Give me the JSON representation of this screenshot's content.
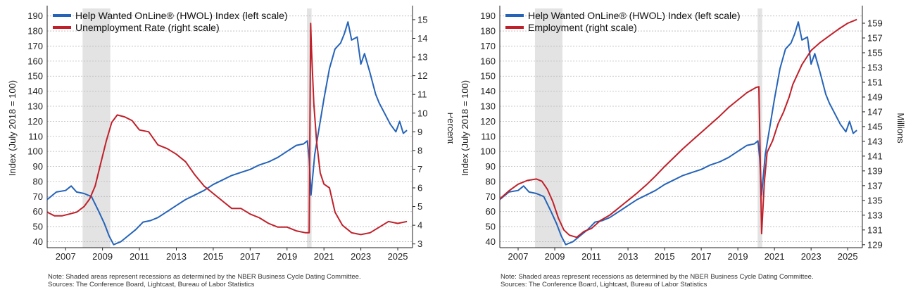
{
  "chart_data": [
    {
      "type": "line",
      "title": "",
      "ylabel_left": "Index (July 2018 = 100)",
      "ylabel_right": "Percent",
      "xlim": [
        2006.0,
        2025.8
      ],
      "ylim_left": [
        36,
        195
      ],
      "ylim_right": [
        2.8,
        15.6
      ],
      "x_ticks": [
        2007,
        2009,
        2011,
        2013,
        2015,
        2017,
        2019,
        2021,
        2023,
        2025
      ],
      "y_left_ticks": [
        40,
        50,
        60,
        70,
        80,
        90,
        100,
        110,
        120,
        130,
        140,
        150,
        160,
        170,
        180,
        190
      ],
      "y_right_ticks": [
        3,
        4,
        5,
        6,
        7,
        8,
        9,
        10,
        11,
        12,
        13,
        14,
        15
      ],
      "grid": true,
      "legend_position": "top-left",
      "recessions": [
        [
          2007.92,
          2009.42
        ],
        [
          2020.08,
          2020.33
        ]
      ],
      "note": "Note: Shaded areas represent recessions as determined by the NBER Business Cycle Dating Committee.",
      "sources": "Sources: The Conference Board, Lightcast, Bureau of Labor Statistics",
      "series": [
        {
          "name": "Help Wanted OnLine® (HWOL) Index (left scale)",
          "axis": "left",
          "color": "#2563b8",
          "x": [
            2006.0,
            2006.5,
            2007.0,
            2007.3,
            2007.6,
            2008.0,
            2008.4,
            2008.8,
            2009.1,
            2009.35,
            2009.6,
            2010.0,
            2010.4,
            2010.8,
            2011.2,
            2011.6,
            2012.0,
            2012.5,
            2013.0,
            2013.5,
            2014.0,
            2014.5,
            2015.0,
            2015.5,
            2016.0,
            2016.5,
            2017.0,
            2017.5,
            2018.0,
            2018.5,
            2019.0,
            2019.5,
            2019.9,
            2020.1,
            2020.2,
            2020.3,
            2020.5,
            2020.8,
            2021.0,
            2021.3,
            2021.6,
            2021.9,
            2022.1,
            2022.3,
            2022.5,
            2022.8,
            2023.0,
            2023.2,
            2023.5,
            2023.8,
            2024.0,
            2024.3,
            2024.6,
            2024.9,
            2025.1,
            2025.3,
            2025.5
          ],
          "values": [
            68,
            73,
            74,
            77,
            73,
            72,
            70,
            60,
            52,
            44,
            38,
            40,
            44,
            48,
            53,
            54,
            56,
            60,
            64,
            68,
            71,
            74,
            78,
            81,
            84,
            86,
            88,
            91,
            93,
            96,
            100,
            104,
            105,
            107,
            95,
            71,
            98,
            120,
            135,
            155,
            168,
            172,
            178,
            186,
            174,
            176,
            158,
            165,
            152,
            138,
            132,
            125,
            118,
            113,
            120,
            112,
            114
          ]
        },
        {
          "name": "Unemployment Rate (right scale)",
          "axis": "right",
          "color": "#c0202a",
          "x": [
            2006.0,
            2006.4,
            2006.8,
            2007.2,
            2007.6,
            2008.0,
            2008.3,
            2008.6,
            2008.9,
            2009.2,
            2009.5,
            2009.8,
            2010.2,
            2010.6,
            2011.0,
            2011.5,
            2012.0,
            2012.5,
            2013.0,
            2013.5,
            2014.0,
            2014.5,
            2015.0,
            2015.5,
            2016.0,
            2016.5,
            2017.0,
            2017.5,
            2018.0,
            2018.5,
            2019.0,
            2019.5,
            2020.0,
            2020.2,
            2020.28,
            2020.32,
            2020.45,
            2020.6,
            2020.8,
            2021.0,
            2021.3,
            2021.6,
            2022.0,
            2022.5,
            2023.0,
            2023.5,
            2024.0,
            2024.5,
            2025.0,
            2025.5
          ],
          "values": [
            4.7,
            4.5,
            4.5,
            4.6,
            4.7,
            5.0,
            5.4,
            6.1,
            7.3,
            8.5,
            9.5,
            9.9,
            9.8,
            9.6,
            9.1,
            9.0,
            8.3,
            8.1,
            7.8,
            7.4,
            6.7,
            6.1,
            5.7,
            5.3,
            4.9,
            4.9,
            4.6,
            4.4,
            4.1,
            3.9,
            3.9,
            3.7,
            3.6,
            3.6,
            14.8,
            13.5,
            10.5,
            8.5,
            6.8,
            6.2,
            6.0,
            4.7,
            4.0,
            3.6,
            3.5,
            3.6,
            3.9,
            4.2,
            4.1,
            4.2
          ]
        }
      ]
    },
    {
      "type": "line",
      "title": "",
      "ylabel_left": "Index (July 2018 = 100)",
      "ylabel_right": "Millions",
      "xlim": [
        2006.0,
        2025.8
      ],
      "ylim_left": [
        36,
        195
      ],
      "ylim_right": [
        128.6,
        161.0
      ],
      "x_ticks": [
        2007,
        2009,
        2011,
        2013,
        2015,
        2017,
        2019,
        2021,
        2023,
        2025
      ],
      "y_left_ticks": [
        40,
        50,
        60,
        70,
        80,
        90,
        100,
        110,
        120,
        130,
        140,
        150,
        160,
        170,
        180,
        190
      ],
      "y_right_ticks": [
        129,
        131,
        133,
        135,
        137,
        139,
        141,
        143,
        145,
        147,
        149,
        151,
        153,
        155,
        157,
        159
      ],
      "grid": true,
      "legend_position": "top-left",
      "recessions": [
        [
          2007.92,
          2009.42
        ],
        [
          2020.08,
          2020.33
        ]
      ],
      "note": "Note: Shaded areas represent recessions as determined by the NBER Business Cycle Dating Committee.",
      "sources": "Sources: The Conference Board, Lightcast, Bureau of Labor Statistics",
      "series": [
        {
          "name": "Help Wanted OnLine® (HWOL) Index (left scale)",
          "axis": "left",
          "color": "#2563b8",
          "x": [
            2006.0,
            2006.5,
            2007.0,
            2007.3,
            2007.6,
            2008.0,
            2008.4,
            2008.8,
            2009.1,
            2009.35,
            2009.6,
            2010.0,
            2010.4,
            2010.8,
            2011.2,
            2011.6,
            2012.0,
            2012.5,
            2013.0,
            2013.5,
            2014.0,
            2014.5,
            2015.0,
            2015.5,
            2016.0,
            2016.5,
            2017.0,
            2017.5,
            2018.0,
            2018.5,
            2019.0,
            2019.5,
            2019.9,
            2020.1,
            2020.2,
            2020.3,
            2020.5,
            2020.8,
            2021.0,
            2021.3,
            2021.6,
            2021.9,
            2022.1,
            2022.3,
            2022.5,
            2022.8,
            2023.0,
            2023.2,
            2023.5,
            2023.8,
            2024.0,
            2024.3,
            2024.6,
            2024.9,
            2025.1,
            2025.3,
            2025.5
          ],
          "values": [
            68,
            73,
            74,
            77,
            73,
            72,
            70,
            60,
            52,
            44,
            38,
            40,
            44,
            48,
            53,
            54,
            56,
            60,
            64,
            68,
            71,
            74,
            78,
            81,
            84,
            86,
            88,
            91,
            93,
            96,
            100,
            104,
            105,
            107,
            95,
            71,
            98,
            120,
            135,
            155,
            168,
            172,
            178,
            186,
            174,
            176,
            158,
            165,
            152,
            138,
            132,
            125,
            118,
            113,
            120,
            112,
            114
          ]
        },
        {
          "name": "Employment (right scale)",
          "axis": "right",
          "color": "#c0202a",
          "x": [
            2006.0,
            2006.5,
            2007.0,
            2007.5,
            2008.0,
            2008.3,
            2008.6,
            2008.9,
            2009.2,
            2009.5,
            2009.8,
            2010.2,
            2010.6,
            2011.0,
            2011.5,
            2012.0,
            2012.5,
            2013.0,
            2013.5,
            2014.0,
            2014.5,
            2015.0,
            2015.5,
            2016.0,
            2016.5,
            2017.0,
            2017.5,
            2018.0,
            2018.5,
            2019.0,
            2019.5,
            2020.0,
            2020.15,
            2020.3,
            2020.45,
            2020.6,
            2020.9,
            2021.2,
            2021.5,
            2021.8,
            2022.0,
            2022.5,
            2023.0,
            2023.5,
            2024.0,
            2024.5,
            2025.0,
            2025.5
          ],
          "values": [
            135.2,
            136.3,
            137.2,
            137.7,
            137.9,
            137.6,
            136.5,
            134.8,
            132.6,
            131.0,
            130.3,
            130.0,
            130.8,
            131.2,
            132.3,
            133.0,
            134.0,
            135.0,
            136.0,
            137.1,
            138.3,
            139.6,
            140.8,
            142.0,
            143.1,
            144.2,
            145.3,
            146.4,
            147.6,
            148.6,
            149.6,
            150.3,
            150.4,
            130.5,
            137.5,
            141.5,
            143.1,
            145.4,
            147.0,
            149.0,
            150.7,
            153.4,
            155.3,
            156.4,
            157.3,
            158.2,
            159.0,
            159.5
          ]
        }
      ]
    }
  ]
}
